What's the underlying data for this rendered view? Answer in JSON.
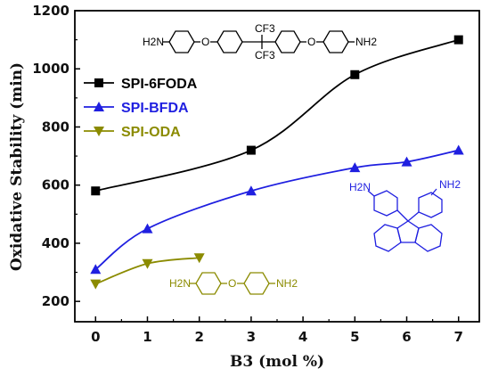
{
  "chart_data": {
    "type": "line",
    "title": "",
    "xlabel": "B3 (mol %)",
    "ylabel": "Oxidative Stability (min)",
    "xlim": [
      -0.4,
      7.4
    ],
    "ylim": [
      130,
      1200
    ],
    "xticks": [
      "0",
      "1",
      "2",
      "3",
      "4",
      "5",
      "6",
      "7"
    ],
    "yticks": [
      "200",
      "400",
      "600",
      "800",
      "1000",
      "1200"
    ],
    "legend_position": "upper-left",
    "series": [
      {
        "name": "SPI-6FODA",
        "color": "#000000",
        "marker": "square",
        "x": [
          0,
          3,
          5,
          7
        ],
        "y": [
          580,
          720,
          980,
          1100
        ]
      },
      {
        "name": "SPI-BFDA",
        "color": "#1f1fe0",
        "marker": "triangle-up",
        "x": [
          0,
          1,
          3,
          5,
          6,
          7
        ],
        "y": [
          310,
          450,
          580,
          660,
          680,
          720
        ]
      },
      {
        "name": "SPI-ODA",
        "color": "#8b8b00",
        "marker": "triangle-down",
        "x": [
          0,
          1,
          2
        ],
        "y": [
          260,
          330,
          350
        ]
      }
    ]
  },
  "structures": {
    "sixfoda": {
      "left_group": "H2N",
      "right_group": "NH2",
      "bridge": "O",
      "top_group": "CF3",
      "bottom_group": "CF3",
      "color": "#000000"
    },
    "bfda": {
      "left_group": "H2N",
      "right_group": "NH2",
      "color": "#1f1fe0"
    },
    "oda": {
      "left_group": "H2N",
      "right_group": "NH2",
      "bridge": "O",
      "color": "#8b8b00"
    }
  }
}
